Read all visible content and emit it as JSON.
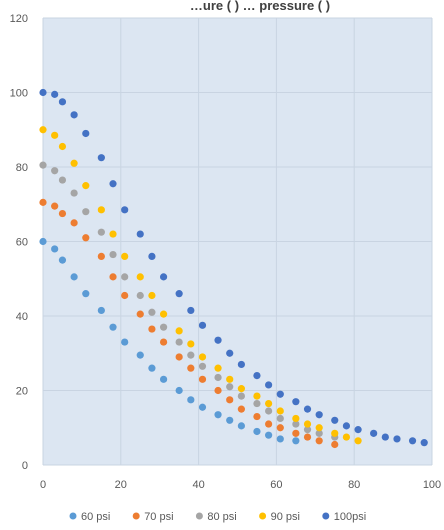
{
  "chart_data": {
    "type": "scatter",
    "title_fragment": "…ure ( ) … pressure ( )",
    "xlim": [
      0,
      100
    ],
    "ylim": [
      0,
      120
    ],
    "x_ticks": [
      "0",
      "20",
      "40",
      "60",
      "80",
      "100"
    ],
    "y_ticks": [
      "0",
      "20",
      "40",
      "60",
      "80",
      "100",
      "120"
    ],
    "grid": true,
    "legend_position": "bottom",
    "plot_background": "#dce6f2",
    "series": [
      {
        "name": "60 psi",
        "color": "#5b9bd5",
        "points": [
          [
            0,
            60
          ],
          [
            3,
            58
          ],
          [
            5,
            55
          ],
          [
            8,
            50.5
          ],
          [
            11,
            46
          ],
          [
            15,
            41.5
          ],
          [
            18,
            37
          ],
          [
            21,
            33
          ],
          [
            25,
            29.5
          ],
          [
            28,
            26
          ],
          [
            31,
            23
          ],
          [
            35,
            20
          ],
          [
            38,
            17.5
          ],
          [
            41,
            15.5
          ],
          [
            45,
            13.5
          ],
          [
            48,
            12
          ],
          [
            51,
            10.5
          ],
          [
            55,
            9
          ],
          [
            58,
            8
          ],
          [
            61,
            7
          ],
          [
            65,
            6.5
          ]
        ]
      },
      {
        "name": "70 psi",
        "color": "#ed7d31",
        "points": [
          [
            0,
            70.5
          ],
          [
            3,
            69.5
          ],
          [
            5,
            67.5
          ],
          [
            8,
            65
          ],
          [
            11,
            61
          ],
          [
            15,
            56
          ],
          [
            18,
            50.5
          ],
          [
            21,
            45.5
          ],
          [
            25,
            40.5
          ],
          [
            28,
            36.5
          ],
          [
            31,
            33
          ],
          [
            35,
            29
          ],
          [
            38,
            26
          ],
          [
            41,
            23
          ],
          [
            45,
            20
          ],
          [
            48,
            17.5
          ],
          [
            51,
            15
          ],
          [
            55,
            13
          ],
          [
            58,
            11
          ],
          [
            61,
            10
          ],
          [
            65,
            8.5
          ],
          [
            68,
            7.5
          ],
          [
            71,
            6.5
          ],
          [
            75,
            5.5
          ]
        ]
      },
      {
        "name": "80 psi",
        "color": "#a5a5a5",
        "points": [
          [
            0,
            80.5
          ],
          [
            3,
            79
          ],
          [
            5,
            76.5
          ],
          [
            8,
            73
          ],
          [
            11,
            68
          ],
          [
            15,
            62.5
          ],
          [
            18,
            56.5
          ],
          [
            21,
            50.5
          ],
          [
            25,
            45.5
          ],
          [
            28,
            41
          ],
          [
            31,
            37
          ],
          [
            35,
            33
          ],
          [
            38,
            29.5
          ],
          [
            41,
            26.5
          ],
          [
            45,
            23.5
          ],
          [
            48,
            21
          ],
          [
            51,
            18.5
          ],
          [
            55,
            16.5
          ],
          [
            58,
            14.5
          ],
          [
            61,
            12.5
          ],
          [
            65,
            11
          ],
          [
            68,
            9.5
          ],
          [
            71,
            8.5
          ],
          [
            75,
            7.5
          ]
        ]
      },
      {
        "name": "90 psi",
        "color": "#ffc000",
        "points": [
          [
            0,
            90
          ],
          [
            3,
            88.5
          ],
          [
            5,
            85.5
          ],
          [
            8,
            81
          ],
          [
            11,
            75
          ],
          [
            15,
            68.5
          ],
          [
            18,
            62
          ],
          [
            21,
            56
          ],
          [
            25,
            50.5
          ],
          [
            28,
            45.5
          ],
          [
            31,
            40.5
          ],
          [
            35,
            36
          ],
          [
            38,
            32.5
          ],
          [
            41,
            29
          ],
          [
            45,
            26
          ],
          [
            48,
            23
          ],
          [
            51,
            20.5
          ],
          [
            55,
            18.5
          ],
          [
            58,
            16.5
          ],
          [
            61,
            14.5
          ],
          [
            65,
            12.5
          ],
          [
            68,
            11
          ],
          [
            71,
            10
          ],
          [
            75,
            8.5
          ],
          [
            78,
            7.5
          ],
          [
            81,
            6.5
          ]
        ]
      },
      {
        "name": "100psi",
        "color": "#4472c4",
        "points": [
          [
            0,
            100
          ],
          [
            3,
            99.5
          ],
          [
            5,
            97.5
          ],
          [
            8,
            94
          ],
          [
            11,
            89
          ],
          [
            15,
            82.5
          ],
          [
            18,
            75.5
          ],
          [
            21,
            68.5
          ],
          [
            25,
            62
          ],
          [
            28,
            56
          ],
          [
            31,
            50.5
          ],
          [
            35,
            46
          ],
          [
            38,
            41.5
          ],
          [
            41,
            37.5
          ],
          [
            45,
            33.5
          ],
          [
            48,
            30
          ],
          [
            51,
            27
          ],
          [
            55,
            24
          ],
          [
            58,
            21.5
          ],
          [
            61,
            19
          ],
          [
            65,
            17
          ],
          [
            68,
            15
          ],
          [
            71,
            13.5
          ],
          [
            75,
            12
          ],
          [
            78,
            10.5
          ],
          [
            81,
            9.5
          ],
          [
            85,
            8.5
          ],
          [
            88,
            7.5
          ],
          [
            91,
            7
          ],
          [
            95,
            6.5
          ],
          [
            98,
            6
          ]
        ]
      }
    ]
  }
}
